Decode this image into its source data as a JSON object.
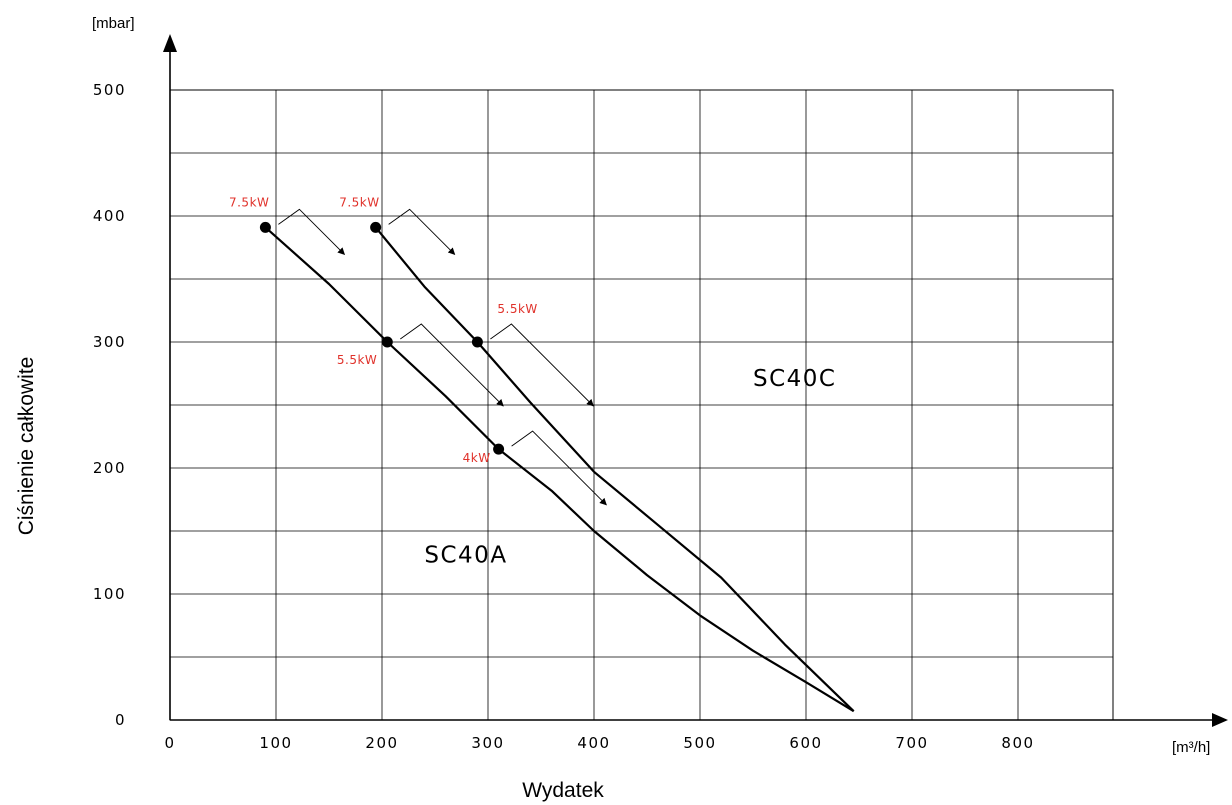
{
  "chart_data": {
    "type": "line",
    "xlabel": "Wydatek",
    "ylabel": "Ciśnienie całkowite",
    "x_unit": "[m³/h]",
    "y_unit": "[mbar]",
    "xlim": [
      0,
      900
    ],
    "ylim": [
      0,
      500
    ],
    "x_ticks": [
      "0",
      "100",
      "200",
      "300",
      "400",
      "500",
      "600",
      "700",
      "800"
    ],
    "y_ticks": [
      "0",
      "100",
      "200",
      "300",
      "400",
      "500"
    ],
    "grid": true,
    "series": [
      {
        "name": "SC40A",
        "color": "#000000",
        "points": [
          [
            90,
            391
          ],
          [
            150,
            346
          ],
          [
            205,
            300
          ],
          [
            260,
            257
          ],
          [
            310,
            215
          ],
          [
            360,
            182
          ],
          [
            400,
            150
          ],
          [
            450,
            115
          ],
          [
            500,
            83
          ],
          [
            550,
            55
          ],
          [
            600,
            30
          ],
          [
            645,
            7
          ]
        ],
        "markers": [
          {
            "x": 90,
            "y": 391,
            "power": "7.5kW"
          },
          {
            "x": 205,
            "y": 300,
            "power": "5.5kW"
          },
          {
            "x": 310,
            "y": 215,
            "power": "4kW"
          }
        ]
      },
      {
        "name": "SC40C",
        "color": "#000000",
        "points": [
          [
            194,
            391
          ],
          [
            240,
            344
          ],
          [
            290,
            300
          ],
          [
            340,
            252
          ],
          [
            400,
            197
          ],
          [
            460,
            155
          ],
          [
            520,
            113
          ],
          [
            580,
            60
          ],
          [
            645,
            7
          ]
        ],
        "markers": [
          {
            "x": 194,
            "y": 391,
            "power": "7.5kW"
          },
          {
            "x": 290,
            "y": 300,
            "power": "5.5kW"
          }
        ]
      }
    ],
    "series_label_positions": {
      "SC40A": [
        240,
        125
      ],
      "SC40C": [
        550,
        265
      ]
    },
    "accent_color": "#e0322b"
  }
}
